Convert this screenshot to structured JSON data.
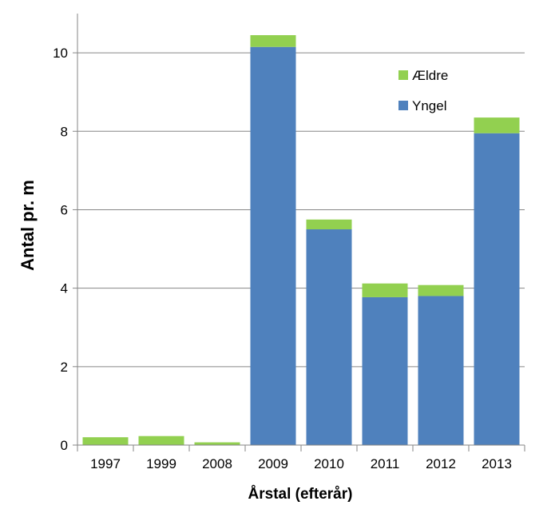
{
  "chart_data": {
    "type": "bar",
    "stacked": true,
    "categories": [
      "1997",
      "1999",
      "2008",
      "2009",
      "2010",
      "2011",
      "2012",
      "2013"
    ],
    "series": [
      {
        "name": "Yngel",
        "color": "#4f81bd",
        "values": [
          0,
          0,
          0,
          10.15,
          5.5,
          3.77,
          3.8,
          7.95
        ]
      },
      {
        "name": "Ældre",
        "color": "#92d050",
        "values": [
          0.2,
          0.23,
          0.07,
          0.3,
          0.25,
          0.35,
          0.28,
          0.4
        ]
      }
    ],
    "xlabel": "Årstal (efterår)",
    "ylabel": "Antal pr. m",
    "ylim": [
      0,
      11
    ],
    "yticks": [
      0,
      2,
      4,
      6,
      8,
      10
    ],
    "grid": true,
    "legend": {
      "position": "top-right",
      "entries": [
        {
          "name": "Ældre",
          "color": "#92d050"
        },
        {
          "name": "Yngel",
          "color": "#4f81bd"
        }
      ]
    }
  }
}
